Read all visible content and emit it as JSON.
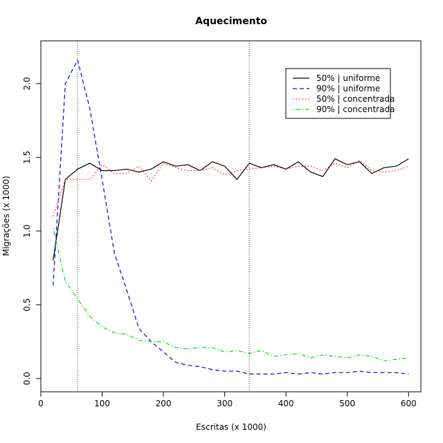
{
  "chart_data": {
    "type": "line",
    "title": "Aquecimento",
    "xlabel": "Escritas (x 1000)",
    "ylabel": "Migrações (x 1000)",
    "xlim": [
      0,
      620
    ],
    "ylim": [
      -0.09,
      2.29
    ],
    "xticks": [
      0,
      100,
      200,
      300,
      400,
      500,
      600
    ],
    "yticks": [
      0.0,
      0.5,
      1.0,
      1.5,
      2.0
    ],
    "ytick_labels": [
      "0.0",
      "0.5",
      "1.0",
      "1.5",
      "2.0"
    ],
    "vlines": [
      60,
      340
    ],
    "legend_position": "top-right",
    "grid": false,
    "x": [
      20,
      40,
      60,
      80,
      100,
      120,
      140,
      160,
      180,
      200,
      220,
      240,
      260,
      280,
      300,
      320,
      340,
      360,
      380,
      400,
      420,
      440,
      460,
      480,
      500,
      520,
      540,
      560,
      580,
      600
    ],
    "series": [
      {
        "name": "50% | uniforme",
        "color": "#000000",
        "dash": "solid",
        "values": [
          0.8,
          1.35,
          1.42,
          1.46,
          1.41,
          1.41,
          1.42,
          1.4,
          1.42,
          1.47,
          1.44,
          1.45,
          1.41,
          1.47,
          1.44,
          1.35,
          1.46,
          1.43,
          1.45,
          1.42,
          1.47,
          1.4,
          1.37,
          1.49,
          1.45,
          1.47,
          1.39,
          1.43,
          1.44,
          1.49
        ]
      },
      {
        "name": "90% | uniforme",
        "color": "#0000ee",
        "dash": "dashed",
        "values": [
          0.63,
          2.0,
          2.16,
          1.83,
          1.35,
          0.85,
          0.6,
          0.34,
          0.25,
          0.18,
          0.11,
          0.09,
          0.08,
          0.06,
          0.05,
          0.05,
          0.03,
          0.03,
          0.03,
          0.04,
          0.03,
          0.04,
          0.03,
          0.04,
          0.04,
          0.05,
          0.04,
          0.04,
          0.04,
          0.03
        ]
      },
      {
        "name": "50% | concentrada",
        "color": "#ff0000",
        "dash": "dotted",
        "values": [
          1.1,
          1.35,
          1.35,
          1.35,
          1.45,
          1.39,
          1.39,
          1.44,
          1.34,
          1.46,
          1.43,
          1.41,
          1.41,
          1.43,
          1.38,
          1.41,
          1.42,
          1.43,
          1.44,
          1.42,
          1.44,
          1.44,
          1.41,
          1.46,
          1.43,
          1.48,
          1.41,
          1.4,
          1.41,
          1.44
        ]
      },
      {
        "name": "90% | concentrada",
        "color": "#00dd00",
        "dash": "dotdash",
        "values": [
          1.02,
          0.66,
          0.54,
          0.42,
          0.35,
          0.31,
          0.3,
          0.26,
          0.25,
          0.25,
          0.21,
          0.2,
          0.21,
          0.21,
          0.18,
          0.19,
          0.17,
          0.19,
          0.15,
          0.16,
          0.17,
          0.14,
          0.16,
          0.15,
          0.14,
          0.16,
          0.15,
          0.12,
          0.13,
          0.14
        ]
      }
    ]
  }
}
